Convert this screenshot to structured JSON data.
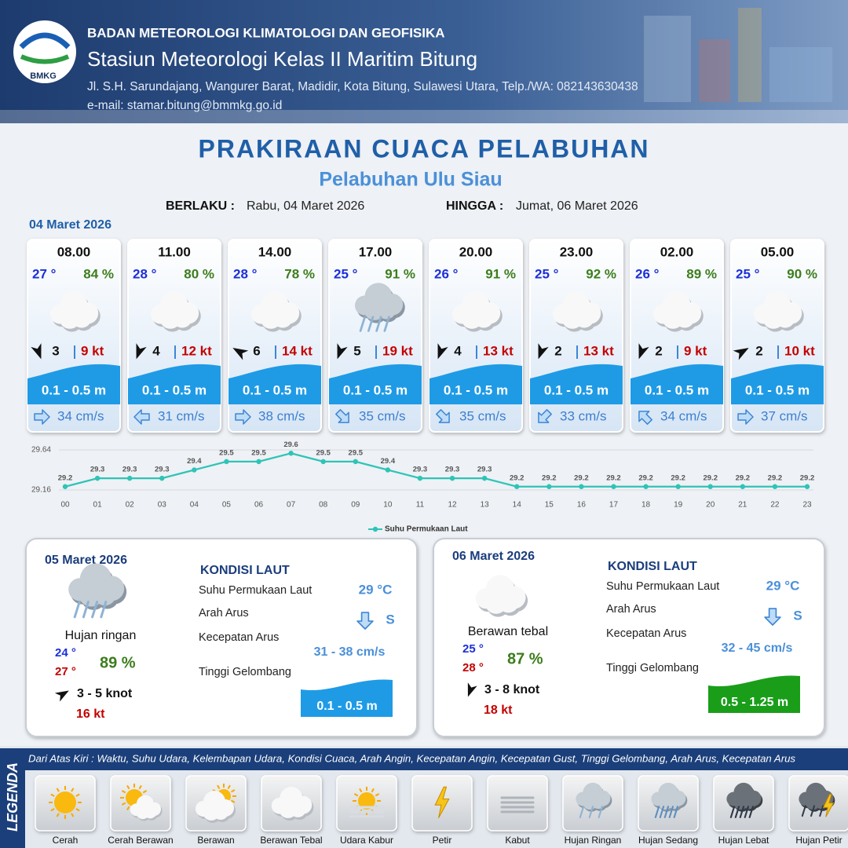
{
  "header": {
    "logo": "BMKG",
    "agency": "BADAN METEOROLOGI KLIMATOLOGI DAN GEOFISIKA",
    "station": "Stasiun Meteorologi Kelas II Maritim Bitung",
    "address": "Jl. S.H. Sarundajang, Wangurer Barat, Madidir, Kota Bitung, Sulawesi Utara, Telp./WA: 082143630438",
    "email": "e-mail: stamar.bitung@bmmkg.go.id"
  },
  "title": "PRAKIRAAN CUACA PELABUHAN",
  "subtitle": "Pelabuhan Ulu Siau",
  "validity": {
    "from_label": "BERLAKU :",
    "from": "Rabu, 04 Maret 2026",
    "to_label": "HINGGA :",
    "to": "Jumat, 06 Maret 2026"
  },
  "today": {
    "date": "04 Maret 2026",
    "slots": [
      {
        "time": "08.00",
        "temp": "27 °",
        "humidity": "84 %",
        "wind": "3",
        "gust": "9 kt",
        "wave": "0.1 - 0.5 m",
        "current": "34 cm/s"
      },
      {
        "time": "11.00",
        "temp": "28 °",
        "humidity": "80 %",
        "wind": "4",
        "gust": "12 kt",
        "wave": "0.1 - 0.5 m",
        "current": "31 cm/s"
      },
      {
        "time": "14.00",
        "temp": "28 °",
        "humidity": "78 %",
        "wind": "6",
        "gust": "14 kt",
        "wave": "0.1 - 0.5 m",
        "current": "38 cm/s"
      },
      {
        "time": "17.00",
        "temp": "25 °",
        "humidity": "91 %",
        "wind": "5",
        "gust": "19 kt",
        "wave": "0.1 - 0.5 m",
        "current": "35 cm/s"
      },
      {
        "time": "20.00",
        "temp": "26 °",
        "humidity": "91 %",
        "wind": "4",
        "gust": "13 kt",
        "wave": "0.1 - 0.5 m",
        "current": "35 cm/s"
      },
      {
        "time": "23.00",
        "temp": "25 °",
        "humidity": "92 %",
        "wind": "2",
        "gust": "13 kt",
        "wave": "0.1 - 0.5 m",
        "current": "33 cm/s"
      },
      {
        "time": "02.00",
        "temp": "26 °",
        "humidity": "89 %",
        "wind": "2",
        "gust": "9 kt",
        "wave": "0.1 - 0.5 m",
        "current": "34 cm/s"
      },
      {
        "time": "05.00",
        "temp": "25 °",
        "humidity": "90 %",
        "wind": "2",
        "gust": "10 kt",
        "wave": "0.1 - 0.5 m",
        "current": "37 cm/s"
      }
    ]
  },
  "chart_data": {
    "type": "line",
    "categories": [
      "00",
      "01",
      "02",
      "03",
      "04",
      "05",
      "06",
      "07",
      "08",
      "09",
      "10",
      "11",
      "12",
      "13",
      "14",
      "15",
      "16",
      "17",
      "18",
      "19",
      "20",
      "21",
      "22",
      "23"
    ],
    "series": [
      {
        "name": "Suhu Permukaan Laut",
        "color": "#2ec4b6",
        "values": [
          29.2,
          29.3,
          29.3,
          29.3,
          29.4,
          29.5,
          29.5,
          29.6,
          29.5,
          29.5,
          29.4,
          29.3,
          29.3,
          29.3,
          29.2,
          29.2,
          29.2,
          29.2,
          29.2,
          29.2,
          29.2,
          29.2,
          29.2,
          29.2
        ]
      }
    ],
    "ylim": [
      29.16,
      29.64
    ],
    "yticks": [
      29.16,
      29.64
    ],
    "grid": true
  },
  "outlook": [
    {
      "date": "05 Maret 2026",
      "condition": "Hujan ringan",
      "temp_min": "24 °",
      "temp_max": "27 °",
      "humidity": "89 %",
      "wind": "3  - 5 knot",
      "gust": "16 kt",
      "sea_title": "KONDISI LAUT",
      "sea_rows": [
        {
          "label": "Suhu Permukaan Laut",
          "value": "29 °C"
        },
        {
          "label": "Arah Arus",
          "value": "S"
        },
        {
          "label": "Kecepatan Arus",
          "value": "31 - 38 cm/s"
        },
        {
          "label": "Tinggi Gelombang",
          "value": "0.1 - 0.5 m"
        }
      ]
    },
    {
      "date": "06 Maret 2026",
      "condition": "Berawan tebal",
      "temp_min": "25 °",
      "temp_max": "28 °",
      "humidity": "87 %",
      "wind": "3 - 8 knot",
      "gust": "18 kt",
      "sea_title": "KONDISI LAUT",
      "sea_rows": [
        {
          "label": "Suhu Permukaan Laut",
          "value": "29 °C"
        },
        {
          "label": "Arah Arus",
          "value": "S"
        },
        {
          "label": "Kecepatan Arus",
          "value": "32 - 45 cm/s"
        },
        {
          "label": "Tinggi Gelombang",
          "value": "0.5 - 1.25 m"
        }
      ]
    }
  ],
  "legend": {
    "title": "LEGENDA",
    "note": "Dari Atas Kiri : Waktu, Suhu Udara, Kelembapan Udara, Kondisi Cuaca, Arah Angin, Kecepatan Angin, Kecepatan Gust, Tinggi Gelombang, Arah Arus, Kecepatan Arus",
    "items": [
      "Cerah",
      "Cerah Berawan",
      "Berawan",
      "Berawan Tebal",
      "Udara Kabur",
      "Petir",
      "Kabut",
      "Hujan Ringan",
      "Hujan Sedang",
      "Hujan Lebat",
      "Hujan Petir"
    ]
  }
}
